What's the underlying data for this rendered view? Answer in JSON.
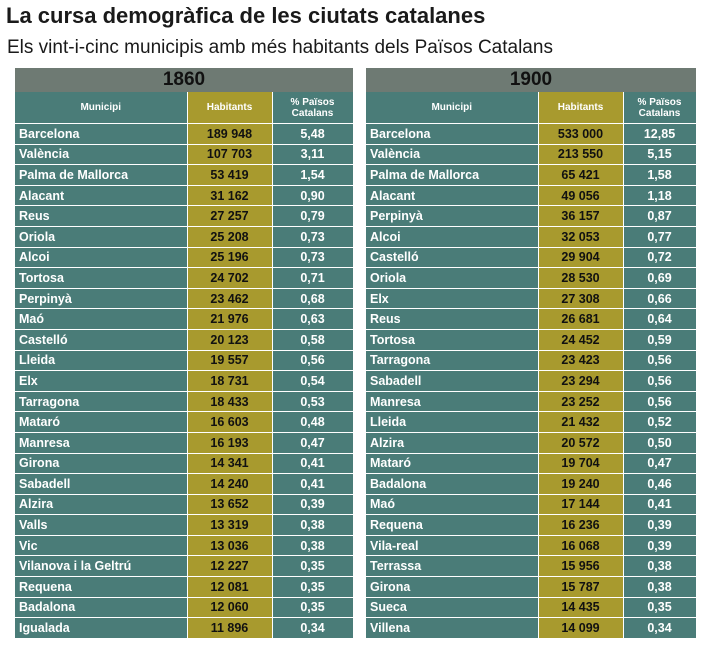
{
  "title": "La cursa demogràfica de les ciutats catalanes",
  "subtitle": "Els vint-i-cinc municipis amb més habitants dels Països Catalans",
  "headers": {
    "municipi": "Municipi",
    "habitants": "Habitants",
    "pct_line1": "% Països",
    "pct_line2": "Catalans"
  },
  "tables": [
    {
      "year": "1860",
      "rows": [
        {
          "municipi": "Barcelona",
          "habitants": "189 948",
          "pct": "5,48"
        },
        {
          "municipi": "València",
          "habitants": "107 703",
          "pct": "3,11"
        },
        {
          "municipi": "Palma de Mallorca",
          "habitants": "53 419",
          "pct": "1,54"
        },
        {
          "municipi": "Alacant",
          "habitants": "31 162",
          "pct": "0,90"
        },
        {
          "municipi": "Reus",
          "habitants": "27 257",
          "pct": "0,79"
        },
        {
          "municipi": "Oriola",
          "habitants": "25 208",
          "pct": "0,73"
        },
        {
          "municipi": "Alcoi",
          "habitants": "25 196",
          "pct": "0,73"
        },
        {
          "municipi": "Tortosa",
          "habitants": "24 702",
          "pct": "0,71"
        },
        {
          "municipi": "Perpinyà",
          "habitants": "23 462",
          "pct": "0,68"
        },
        {
          "municipi": "Maó",
          "habitants": "21 976",
          "pct": "0,63"
        },
        {
          "municipi": "Castelló",
          "habitants": "20 123",
          "pct": "0,58"
        },
        {
          "municipi": "Lleida",
          "habitants": "19 557",
          "pct": "0,56"
        },
        {
          "municipi": "Elx",
          "habitants": "18 731",
          "pct": "0,54"
        },
        {
          "municipi": "Tarragona",
          "habitants": "18 433",
          "pct": "0,53"
        },
        {
          "municipi": "Mataró",
          "habitants": "16 603",
          "pct": "0,48"
        },
        {
          "municipi": "Manresa",
          "habitants": "16 193",
          "pct": "0,47"
        },
        {
          "municipi": "Girona",
          "habitants": "14 341",
          "pct": "0,41"
        },
        {
          "municipi": "Sabadell",
          "habitants": "14 240",
          "pct": "0,41"
        },
        {
          "municipi": "Alzira",
          "habitants": "13 652",
          "pct": "0,39"
        },
        {
          "municipi": "Valls",
          "habitants": "13 319",
          "pct": "0,38"
        },
        {
          "municipi": "Vic",
          "habitants": "13 036",
          "pct": "0,38"
        },
        {
          "municipi": "Vilanova i la Geltrú",
          "habitants": "12 227",
          "pct": "0,35"
        },
        {
          "municipi": "Requena",
          "habitants": "12 081",
          "pct": "0,35"
        },
        {
          "municipi": "Badalona",
          "habitants": "12 060",
          "pct": "0,35"
        },
        {
          "municipi": "Igualada",
          "habitants": "11 896",
          "pct": "0,34"
        }
      ]
    },
    {
      "year": "1900",
      "rows": [
        {
          "municipi": "Barcelona",
          "habitants": "533 000",
          "pct": "12,85"
        },
        {
          "municipi": "València",
          "habitants": "213 550",
          "pct": "5,15"
        },
        {
          "municipi": "Palma de Mallorca",
          "habitants": "65 421",
          "pct": "1,58"
        },
        {
          "municipi": "Alacant",
          "habitants": "49 056",
          "pct": "1,18"
        },
        {
          "municipi": "Perpinyà",
          "habitants": "36 157",
          "pct": "0,87"
        },
        {
          "municipi": "Alcoi",
          "habitants": "32 053",
          "pct": "0,77"
        },
        {
          "municipi": "Castelló",
          "habitants": "29 904",
          "pct": "0,72"
        },
        {
          "municipi": "Oriola",
          "habitants": "28 530",
          "pct": "0,69"
        },
        {
          "municipi": "Elx",
          "habitants": "27 308",
          "pct": "0,66"
        },
        {
          "municipi": "Reus",
          "habitants": "26 681",
          "pct": "0,64"
        },
        {
          "municipi": "Tortosa",
          "habitants": "24 452",
          "pct": "0,59"
        },
        {
          "municipi": "Tarragona",
          "habitants": "23 423",
          "pct": "0,56"
        },
        {
          "municipi": "Sabadell",
          "habitants": "23 294",
          "pct": "0,56"
        },
        {
          "municipi": "Manresa",
          "habitants": "23 252",
          "pct": "0,56"
        },
        {
          "municipi": "Lleida",
          "habitants": "21 432",
          "pct": "0,52"
        },
        {
          "municipi": "Alzira",
          "habitants": "20 572",
          "pct": "0,50"
        },
        {
          "municipi": "Mataró",
          "habitants": "19 704",
          "pct": "0,47"
        },
        {
          "municipi": "Badalona",
          "habitants": "19 240",
          "pct": "0,46"
        },
        {
          "municipi": "Maó",
          "habitants": "17 144",
          "pct": "0,41"
        },
        {
          "municipi": "Requena",
          "habitants": "16 236",
          "pct": "0,39"
        },
        {
          "municipi": "Vila-real",
          "habitants": "16 068",
          "pct": "0,39"
        },
        {
          "municipi": "Terrassa",
          "habitants": "15 956",
          "pct": "0,38"
        },
        {
          "municipi": "Girona",
          "habitants": "15 787",
          "pct": "0,38"
        },
        {
          "municipi": "Sueca",
          "habitants": "14 435",
          "pct": "0,35"
        },
        {
          "municipi": "Villena",
          "habitants": "14 099",
          "pct": "0,34"
        }
      ]
    }
  ],
  "colors": {
    "teal": "#4a7c78",
    "mustard": "#a89a2e",
    "year_bar": "#6e7a73"
  }
}
